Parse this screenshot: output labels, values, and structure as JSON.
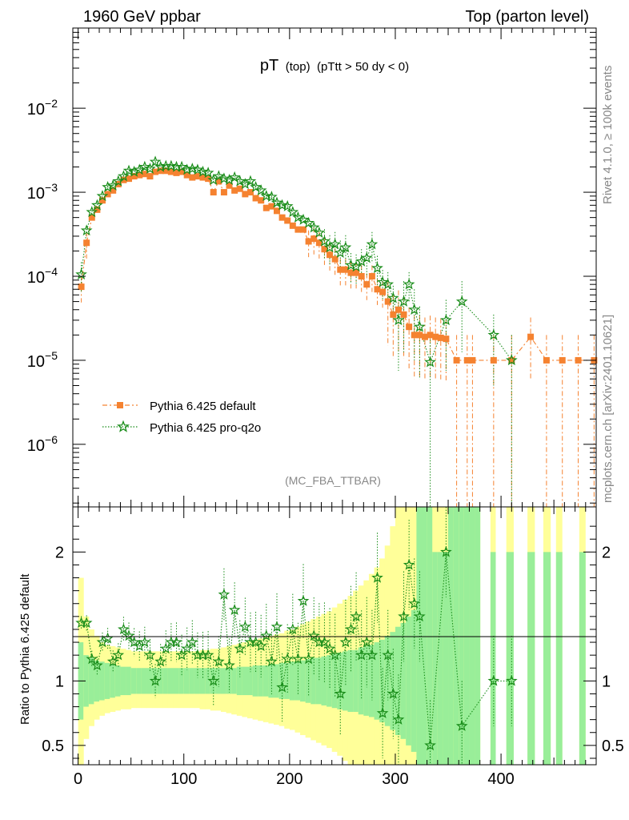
{
  "header": {
    "left": "1960 GeV ppbar",
    "right": "Top (parton level)"
  },
  "plot_title": {
    "main": "pT",
    "sub1": "(top)",
    "sub2": "(pTtt > 50 dy < 0)"
  },
  "side_labels": {
    "rivet": "Rivet 4.1.0, ≥ 100k events",
    "mcplots": "mcplots.cern.ch [arXiv:2401.10621]"
  },
  "analysis_tag": "(MC_FBA_TTBAR)",
  "legend": [
    {
      "label": "Pythia 6.425 default",
      "color": "#f58230",
      "marker": "square"
    },
    {
      "label": "Pythia 6.425 pro-q2o",
      "color": "#188c18",
      "marker": "star"
    }
  ],
  "ratio_ylabel": "Ratio to Pythia 6.425 default",
  "colors": {
    "ref": "#f58230",
    "mc": "#188c18",
    "band_inner": "#99ee99",
    "band_outer": "#ffff99"
  },
  "chart_data": {
    "type": "scatter",
    "xlim": [
      -5,
      490
    ],
    "main": {
      "yscale": "log",
      "ylim": [
        1.8e-07,
        0.09
      ],
      "yticks": [
        {
          "value": 0.01,
          "mant": "10",
          "exp": "−2"
        },
        {
          "value": 0.001,
          "mant": "10",
          "exp": "−3"
        },
        {
          "value": 0.0001,
          "mant": "10",
          "exp": "−4"
        },
        {
          "value": 1e-05,
          "mant": "10",
          "exp": "−5"
        },
        {
          "value": 1e-06,
          "mant": "10",
          "exp": "−6"
        }
      ]
    },
    "ratio": {
      "ylim": [
        0.35,
        2.35
      ],
      "yticks": [
        {
          "value": 2,
          "label": "2"
        },
        {
          "value": 1,
          "label": "1"
        },
        {
          "value": 0.5,
          "label": "0.5"
        }
      ]
    },
    "xticks": [
      {
        "value": 0,
        "label": "0"
      },
      {
        "value": 100,
        "label": "100"
      },
      {
        "value": 200,
        "label": "200"
      },
      {
        "value": 300,
        "label": "300"
      },
      {
        "value": 400,
        "label": "400"
      }
    ],
    "series": [
      {
        "name": "Pythia 6.425 default",
        "x": [
          3,
          8,
          13,
          18,
          23,
          28,
          33,
          38,
          43,
          48,
          53,
          58,
          63,
          68,
          73,
          78,
          83,
          88,
          93,
          98,
          103,
          108,
          113,
          118,
          123,
          128,
          133,
          138,
          143,
          148,
          153,
          158,
          163,
          168,
          173,
          178,
          183,
          188,
          193,
          198,
          203,
          208,
          213,
          218,
          223,
          228,
          233,
          238,
          243,
          248,
          253,
          258,
          263,
          268,
          273,
          278,
          283,
          288,
          293,
          298,
          303,
          308,
          313,
          318,
          323,
          328,
          333,
          338,
          343,
          348,
          358,
          368,
          373,
          393,
          410,
          428,
          443,
          458,
          473,
          488
        ],
        "y": [
          7.5e-05,
          0.00025,
          0.0005,
          0.00062,
          0.0008,
          0.00095,
          0.00105,
          0.00125,
          0.0014,
          0.00145,
          0.00155,
          0.0016,
          0.00165,
          0.00155,
          0.00175,
          0.0018,
          0.0018,
          0.00175,
          0.0017,
          0.00175,
          0.0016,
          0.0015,
          0.00155,
          0.0015,
          0.00145,
          0.001,
          0.00135,
          0.001,
          0.0012,
          0.00105,
          0.0011,
          0.00095,
          0.001,
          0.00085,
          0.0008,
          0.00065,
          0.00068,
          0.0006,
          0.0005,
          0.00046,
          0.0004,
          0.00036,
          0.00036,
          0.00026,
          0.00028,
          0.00025,
          0.00021,
          0.00018,
          0.00016,
          0.00012,
          0.00012,
          0.00011,
          0.00011,
          0.0001,
          8e-05,
          0.0001,
          7e-05,
          6.5e-05,
          5e-05,
          3.5e-05,
          4e-05,
          3.5e-05,
          2.5e-05,
          2e-05,
          2e-05,
          1.9e-05,
          2e-05,
          1.9e-05,
          1.85e-05,
          1.8e-05,
          1e-05,
          1e-05,
          1e-05,
          1e-05,
          1e-05,
          1.9e-05,
          1e-05,
          1e-05,
          1e-05,
          1e-05
        ]
      },
      {
        "name": "Pythia 6.425 pro-q2o",
        "x": [
          3,
          8,
          13,
          18,
          23,
          28,
          33,
          38,
          43,
          48,
          53,
          58,
          63,
          68,
          73,
          78,
          83,
          88,
          93,
          98,
          103,
          108,
          113,
          118,
          123,
          128,
          133,
          138,
          143,
          148,
          153,
          158,
          163,
          168,
          173,
          178,
          183,
          188,
          193,
          198,
          203,
          208,
          213,
          218,
          223,
          228,
          233,
          238,
          243,
          248,
          253,
          258,
          263,
          268,
          273,
          278,
          283,
          288,
          293,
          298,
          303,
          308,
          313,
          318,
          323,
          333,
          348,
          363,
          393,
          410
        ],
        "y": [
          0.000105,
          0.00035,
          0.00058,
          0.0007,
          0.0009,
          0.00115,
          0.0012,
          0.00135,
          0.00155,
          0.0018,
          0.00175,
          0.00185,
          0.002,
          0.0019,
          0.0023,
          0.002,
          0.00205,
          0.00205,
          0.002,
          0.002,
          0.00185,
          0.0019,
          0.00185,
          0.00175,
          0.0017,
          0.0014,
          0.00155,
          0.00145,
          0.0014,
          0.0015,
          0.00135,
          0.00125,
          0.00135,
          0.00115,
          0.00105,
          0.0009,
          0.00088,
          0.00075,
          0.0007,
          0.00068,
          0.00058,
          0.0005,
          0.00047,
          0.00043,
          0.00038,
          0.00033,
          0.00026,
          0.00022,
          0.00024,
          0.00019,
          0.00022,
          0.000135,
          0.00013,
          0.00015,
          0.000165,
          0.00024,
          0.000125,
          8.5e-05,
          8e-05,
          5.5e-05,
          3e-05,
          5e-05,
          8e-05,
          4e-05,
          2.5e-05,
          9.5e-06,
          3e-05,
          5e-05,
          2e-05,
          1e-05
        ]
      }
    ],
    "ratio_points": {
      "x": [
        3,
        8,
        13,
        18,
        23,
        28,
        33,
        38,
        43,
        48,
        53,
        58,
        63,
        68,
        73,
        78,
        83,
        88,
        93,
        98,
        103,
        108,
        113,
        118,
        123,
        128,
        133,
        138,
        143,
        148,
        153,
        158,
        163,
        168,
        173,
        178,
        183,
        188,
        193,
        198,
        203,
        208,
        213,
        218,
        223,
        228,
        233,
        238,
        243,
        248,
        253,
        258,
        263,
        268,
        273,
        278,
        283,
        288,
        293,
        298,
        303,
        308,
        313,
        318,
        323,
        333,
        348,
        363,
        393,
        410
      ],
      "y": [
        1.45,
        1.45,
        1.17,
        1.12,
        1.3,
        1.33,
        1.15,
        1.2,
        1.4,
        1.35,
        1.3,
        1.27,
        1.3,
        1.2,
        1.0,
        1.15,
        1.25,
        1.3,
        1.3,
        1.2,
        1.25,
        1.3,
        1.2,
        1.2,
        1.2,
        1.0,
        1.15,
        1.67,
        1.12,
        1.55,
        1.25,
        1.42,
        1.3,
        1.3,
        1.27,
        1.35,
        1.15,
        1.42,
        0.95,
        1.17,
        1.4,
        1.17,
        1.62,
        1.17,
        1.35,
        1.3,
        1.3,
        1.25,
        1.2,
        0.9,
        1.3,
        1.4,
        1.5,
        1.2,
        1.3,
        1.2,
        1.8,
        0.75,
        1.2,
        0.9,
        0.7,
        1.5,
        1.9,
        1.6,
        1.5,
        0.5,
        2.0,
        0.65,
        1.0,
        1.0
      ]
    },
    "bands": {
      "x_edges": [
        0,
        5,
        10,
        15,
        20,
        25,
        30,
        35,
        40,
        45,
        50,
        55,
        60,
        65,
        70,
        75,
        80,
        85,
        90,
        95,
        100,
        105,
        110,
        115,
        120,
        125,
        130,
        135,
        140,
        145,
        150,
        155,
        160,
        165,
        170,
        175,
        180,
        185,
        190,
        195,
        200,
        205,
        210,
        215,
        220,
        225,
        230,
        235,
        240,
        245,
        250,
        255,
        260,
        265,
        270,
        275,
        280,
        285,
        290,
        295,
        300,
        305,
        310,
        315,
        320,
        325,
        330,
        335,
        340,
        345,
        350,
        355,
        360,
        365,
        370,
        375,
        380
      ],
      "inner_lo": [
        0.7,
        0.8,
        0.82,
        0.84,
        0.85,
        0.86,
        0.87,
        0.88,
        0.89,
        0.89,
        0.9,
        0.9,
        0.9,
        0.9,
        0.9,
        0.9,
        0.9,
        0.9,
        0.9,
        0.9,
        0.9,
        0.9,
        0.9,
        0.9,
        0.9,
        0.9,
        0.9,
        0.9,
        0.9,
        0.9,
        0.89,
        0.89,
        0.89,
        0.88,
        0.88,
        0.88,
        0.87,
        0.87,
        0.86,
        0.86,
        0.85,
        0.85,
        0.84,
        0.83,
        0.82,
        0.82,
        0.81,
        0.8,
        0.79,
        0.78,
        0.77,
        0.76,
        0.76,
        0.74,
        0.73,
        0.72,
        0.7,
        0.68,
        0.65,
        0.62,
        0.58,
        0.55,
        0.5,
        0.45,
        0.35,
        0.35,
        0.35,
        0.35,
        0.35,
        0.35,
        0.35,
        0.35,
        0.35,
        0.35,
        0.35,
        0.35
      ],
      "inner_hi": [
        1.3,
        1.2,
        1.18,
        1.16,
        1.15,
        1.14,
        1.13,
        1.12,
        1.11,
        1.11,
        1.1,
        1.1,
        1.1,
        1.1,
        1.1,
        1.1,
        1.1,
        1.1,
        1.1,
        1.1,
        1.1,
        1.1,
        1.1,
        1.1,
        1.1,
        1.1,
        1.1,
        1.1,
        1.1,
        1.1,
        1.11,
        1.11,
        1.11,
        1.12,
        1.12,
        1.12,
        1.13,
        1.13,
        1.14,
        1.14,
        1.15,
        1.15,
        1.16,
        1.17,
        1.18,
        1.18,
        1.19,
        1.2,
        1.21,
        1.22,
        1.23,
        1.24,
        1.24,
        1.26,
        1.27,
        1.28,
        1.3,
        1.32,
        1.35,
        1.38,
        1.42,
        1.45,
        1.5,
        1.55,
        2.35,
        2.35,
        2.35,
        2.0,
        2.0,
        2.0,
        2.35,
        2.35,
        2.35,
        2.35,
        2.35,
        2.35
      ],
      "outer_lo": [
        0.35,
        0.55,
        0.65,
        0.7,
        0.73,
        0.75,
        0.76,
        0.77,
        0.78,
        0.78,
        0.79,
        0.79,
        0.79,
        0.79,
        0.79,
        0.79,
        0.79,
        0.79,
        0.79,
        0.79,
        0.79,
        0.79,
        0.79,
        0.78,
        0.78,
        0.77,
        0.77,
        0.76,
        0.75,
        0.74,
        0.73,
        0.72,
        0.71,
        0.7,
        0.69,
        0.68,
        0.67,
        0.66,
        0.65,
        0.63,
        0.62,
        0.6,
        0.58,
        0.56,
        0.54,
        0.52,
        0.5,
        0.48,
        0.45,
        0.42,
        0.38,
        0.35,
        0.35,
        0.35,
        0.35,
        0.35,
        0.35,
        0.35,
        0.35,
        0.35,
        0.35,
        0.35,
        0.35,
        0.35,
        0.35,
        0.35,
        0.35,
        0.35,
        0.35,
        0.35,
        0.35,
        0.35,
        0.35,
        0.35,
        0.35,
        0.35
      ],
      "outer_hi": [
        1.8,
        1.5,
        1.4,
        1.35,
        1.3,
        1.28,
        1.27,
        1.26,
        1.25,
        1.24,
        1.23,
        1.23,
        1.23,
        1.23,
        1.23,
        1.23,
        1.23,
        1.23,
        1.23,
        1.23,
        1.23,
        1.23,
        1.23,
        1.24,
        1.24,
        1.25,
        1.25,
        1.26,
        1.27,
        1.28,
        1.29,
        1.3,
        1.31,
        1.32,
        1.33,
        1.34,
        1.35,
        1.36,
        1.37,
        1.39,
        1.4,
        1.42,
        1.44,
        1.46,
        1.48,
        1.5,
        1.52,
        1.54,
        1.57,
        1.6,
        1.63,
        1.66,
        1.7,
        1.74,
        1.78,
        1.83,
        1.88,
        1.95,
        2.05,
        2.2,
        2.35,
        2.35,
        2.35,
        2.35,
        2.35,
        2.35,
        2.35,
        2.35,
        2.35,
        2.35,
        2.35,
        2.35,
        2.35,
        2.35,
        2.35,
        2.35
      ],
      "full_bins": [
        [
          390,
          395
        ],
        [
          405,
          412
        ],
        [
          425,
          432
        ],
        [
          440,
          447
        ],
        [
          452,
          458
        ],
        [
          474,
          480
        ]
      ]
    }
  }
}
